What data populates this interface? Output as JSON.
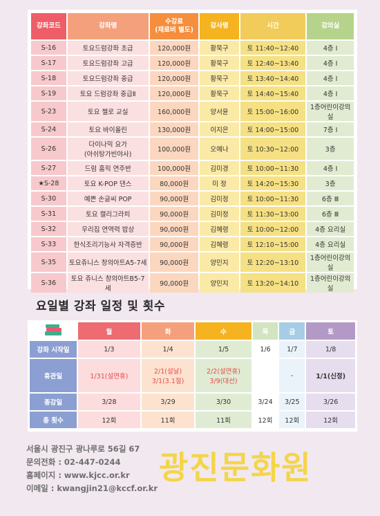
{
  "course_table": {
    "headers": [
      "강좌코드",
      "강좌명",
      "수강료\n(재료비 별도)",
      "강사명",
      "시간",
      "강의실"
    ],
    "rows": [
      [
        "S-16",
        "토요드럼강좌 초급",
        "120,000원",
        "황묵구",
        "토 11:40~12:40",
        "4층 I"
      ],
      [
        "S-17",
        "토요드럼강좌 고급",
        "120,000원",
        "황묵구",
        "토 12:40~13:40",
        "4층 I"
      ],
      [
        "S-18",
        "토요드럼강좌 중급",
        "120,000원",
        "황묵구",
        "토 13:40~14:40",
        "4층 I"
      ],
      [
        "S-19",
        "토요 드럼강좌 중급Ⅱ",
        "120,000원",
        "황묵구",
        "토 14:40~15:40",
        "4층 I"
      ],
      [
        "S-23",
        "토요 첼로 교실",
        "160,000원",
        "양서윤",
        "토 15:00~16:00",
        "1층어린이강의실"
      ],
      [
        "S-24",
        "토요 바이올린",
        "130,000원",
        "이지은",
        "토 14:00~15:00",
        "7층 I"
      ],
      [
        "S-26",
        "다이나믹 요가\n(아쉬탕가빈야사)",
        "100,000원",
        "오예나",
        "토 10:30~12:00",
        "3층"
      ],
      [
        "S-27",
        "드럼 홈릭 연주반",
        "100,000원",
        "김미경",
        "토 10:00~11:30",
        "4층 I"
      ],
      [
        "★S-28",
        "토요 K-POP 댄스",
        "80,000원",
        "미 정",
        "토 14:20~15:30",
        "3층"
      ],
      [
        "S-30",
        "예쁜 손글씨 POP",
        "90,000원",
        "김미정",
        "토 10:00~11:30",
        "6층 Ⅲ"
      ],
      [
        "S-31",
        "토요 캘리그라피",
        "90,000원",
        "김미정",
        "토 11:30~13:00",
        "6층 Ⅲ"
      ],
      [
        "S-32",
        "우리집 연역력 밥상",
        "90,000원",
        "김혜령",
        "토 10:00~12:00",
        "4층 요리실"
      ],
      [
        "S-33",
        "한식조리기능사 자격증반",
        "90,000원",
        "김혜령",
        "토 12:10~15:00",
        "4층 요리실"
      ],
      [
        "S-35",
        "토요쥬니스 창의아트A5-7세",
        "90,000원",
        "양민지",
        "토 12:20~13:10",
        "1층어린이강의실"
      ],
      [
        "S-36",
        "토요 쥬니스 창의아트B5-7세",
        "90,000원",
        "양민지",
        "토 13:20~14:10",
        "1층어린이강의실"
      ]
    ]
  },
  "schedule": {
    "title": "요일별 강좌 일정 및 횟수",
    "book_icon": "book-stack-icon",
    "days": [
      "월",
      "화",
      "수",
      "목",
      "금",
      "토"
    ],
    "rows": [
      {
        "label": "강좌 시작일",
        "values": [
          "1/3",
          "1/4",
          "1/5",
          "1/6",
          "1/7",
          "1/8"
        ]
      },
      {
        "label": "휴관일",
        "values": [
          "1/31(설연휴)",
          "2/1(설날)\n3/1(3.1절)",
          "2/2(설연휴)\n3/9(대선)",
          "",
          "-",
          "1/1(신정)"
        ]
      },
      {
        "label": "종강일",
        "values": [
          "3/28",
          "3/29",
          "3/30",
          "3/24",
          "3/25",
          "3/26"
        ]
      },
      {
        "label": "총 횟수",
        "values": [
          "12회",
          "11회",
          "11회",
          "12회",
          "12회",
          "12회"
        ]
      }
    ]
  },
  "contact": {
    "address": "서울시 광진구 광나루로 56길 67",
    "phone": "문의전화 : 02-447-0244",
    "homepage": "홈페이지 : www.kjcc.or.kr",
    "email": "이메일 : kwangjin21@kccf.or.kr"
  },
  "organization": "광진문화원"
}
